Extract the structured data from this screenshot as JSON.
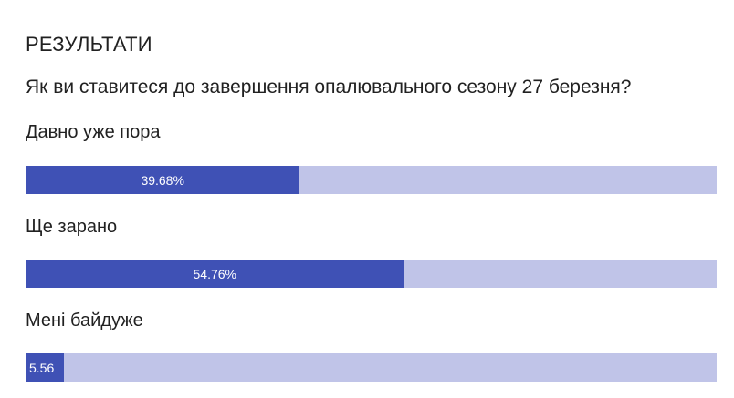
{
  "results": {
    "title": "РЕЗУЛЬТАТИ",
    "question": "Як ви ставитеся до завершення опалювального сезону 27 березня?",
    "options": [
      {
        "label": "Давно уже пора",
        "value_text": "39.68%",
        "percent": 39.68
      },
      {
        "label": "Ще зарано",
        "value_text": "54.76%",
        "percent": 54.76
      },
      {
        "label": "Мені байдуже",
        "value_text": "5.56",
        "percent": 5.56
      }
    ]
  },
  "colors": {
    "bar_fill": "#3f51b5",
    "bar_track": "#c0c4e8",
    "text": "#212121"
  }
}
